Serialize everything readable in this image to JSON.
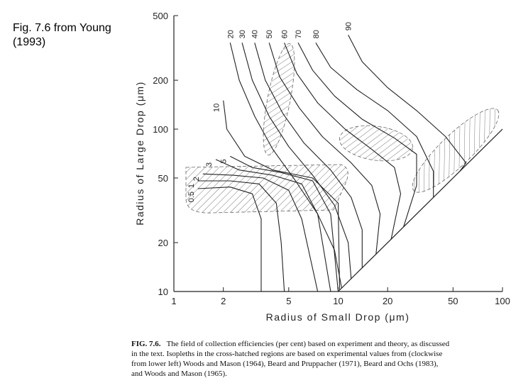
{
  "note": [
    "Fig. 7.6 from Young",
    "(1993)"
  ],
  "chart_data": {
    "type": "line",
    "xscale": "log",
    "yscale": "log",
    "x_label": "Radius of Small Drop (μm)",
    "y_label": "Radius of Large Drop (μm)",
    "xlim": [
      1,
      100
    ],
    "ylim": [
      10,
      500
    ],
    "xticks": [
      1,
      2,
      5,
      10,
      20,
      50,
      100
    ],
    "yticks": [
      10,
      20,
      50,
      100,
      200,
      500
    ],
    "color": "#222",
    "series": [
      {
        "name": "0.5",
        "x": [
          1.4,
          2.2,
          3,
          3.4,
          3.4
        ],
        "values": [
          43,
          44,
          40,
          28,
          10
        ]
      },
      {
        "name": "1",
        "x": [
          1.4,
          2.2,
          3.3,
          4.2,
          4.5,
          4.7
        ],
        "values": [
          48,
          48,
          46,
          35,
          20,
          10
        ]
      },
      {
        "name": "2",
        "x": [
          1.5,
          2.3,
          3.5,
          5,
          6,
          7.5
        ],
        "values": [
          53,
          52,
          50,
          42,
          28,
          10
        ]
      },
      {
        "name": "3",
        "x": [
          1.8,
          2.5,
          4,
          6,
          7.5,
          9
        ],
        "values": [
          65,
          56,
          52,
          46,
          30,
          10
        ]
      },
      {
        "name": "5",
        "x": [
          2.2,
          3,
          4.5,
          7,
          9,
          10
        ],
        "values": [
          68,
          58,
          54,
          48,
          30,
          10
        ]
      },
      {
        "name": "10",
        "x": [
          2,
          2.1,
          2.7,
          4,
          7,
          10,
          10.2
        ],
        "values": [
          150,
          100,
          68,
          56,
          50,
          35,
          10.2
        ]
      },
      {
        "name": "20",
        "x": [
          2.2,
          2.5,
          3.1,
          4,
          5.5,
          7.5,
          9.5,
          10.5
        ],
        "values": [
          340,
          200,
          120,
          75,
          48,
          30,
          18,
          10.5
        ]
      },
      {
        "name": "30",
        "x": [
          2.6,
          3,
          3.8,
          5,
          7,
          9.5,
          11.5,
          12
        ],
        "values": [
          340,
          200,
          120,
          78,
          52,
          34,
          20,
          12
        ]
      },
      {
        "name": "40",
        "x": [
          3.1,
          3.6,
          4.6,
          6.2,
          9,
          12,
          14,
          14
        ],
        "values": [
          340,
          200,
          125,
          82,
          56,
          38,
          24,
          14
        ]
      },
      {
        "name": "50",
        "x": [
          3.8,
          4.4,
          5.8,
          8,
          12,
          16,
          18,
          17
        ],
        "values": [
          340,
          210,
          135,
          90,
          62,
          45,
          30,
          17
        ]
      },
      {
        "name": "60",
        "x": [
          4.7,
          5.6,
          7.5,
          11,
          16,
          22,
          24,
          21
        ],
        "values": [
          340,
          220,
          145,
          100,
          75,
          58,
          40,
          21
        ]
      },
      {
        "name": "70",
        "x": [
          5.7,
          7,
          9.5,
          14,
          22,
          30,
          30,
          25
        ],
        "values": [
          340,
          230,
          160,
          115,
          88,
          70,
          45,
          25
        ]
      },
      {
        "name": "80",
        "x": [
          7.3,
          9,
          13,
          20,
          30,
          38,
          38
        ],
        "values": [
          340,
          240,
          175,
          130,
          90,
          55,
          38
        ]
      },
      {
        "name": "90",
        "x": [
          11.5,
          14,
          20,
          30,
          45,
          60,
          55
        ],
        "values": [
          380,
          260,
          180,
          130,
          90,
          62,
          55
        ]
      }
    ]
  },
  "caption": {
    "label": "FIG. 7.6.",
    "lines": [
      "The field of collection efficiencies (per cent) based on experiment and theory, as discussed",
      "in the text. Isopleths in the cross-hatched regions are based on experimental values from (clockwise",
      "from lower left) Woods and Mason (1964), Beard and Pruppacher (1971), Beard and Ochs (1983),",
      "and Woods and Mason (1965)."
    ]
  }
}
